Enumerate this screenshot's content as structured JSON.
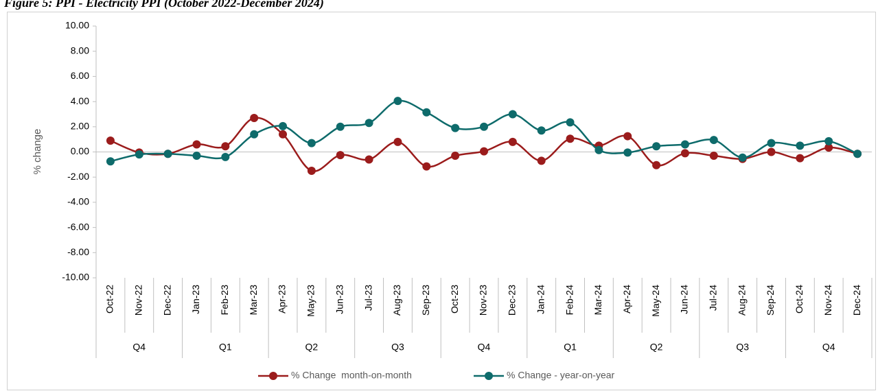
{
  "chart_data": {
    "type": "line",
    "title": "Figure 5: PPI - Electricity PPI (October 2022-December 2024)",
    "y_label": "% change",
    "categories": [
      "Oct-22",
      "Nov-22",
      "Dec-22",
      "Jan-23",
      "Feb-23",
      "Mar-23",
      "Apr-23",
      "May-23",
      "Jun-23",
      "Jul-23",
      "Aug-23",
      "Sep-23",
      "Oct-23",
      "Nov-23",
      "Dec-23",
      "Jan-24",
      "Feb-24",
      "Mar-24",
      "Apr-24",
      "May-24",
      "Jun-24",
      "Jul-24",
      "Aug-24",
      "Sep-24",
      "Oct-24",
      "Nov-24",
      "Dec-24"
    ],
    "quarters": [
      "Q4",
      "Q4",
      "Q4",
      "Q1",
      "Q1",
      "Q1",
      "Q2",
      "Q2",
      "Q2",
      "Q3",
      "Q3",
      "Q3",
      "Q4",
      "Q4",
      "Q4",
      "Q1",
      "Q1",
      "Q1",
      "Q2",
      "Q2",
      "Q2",
      "Q3",
      "Q3",
      "Q3",
      "Q4",
      "Q4",
      "Q4"
    ],
    "series": [
      {
        "name": "% Change  month-on-month",
        "color": "#9b1c1c",
        "values": [
          0.9,
          -0.05,
          -0.15,
          0.6,
          0.45,
          2.7,
          1.4,
          -1.5,
          -0.25,
          -0.6,
          0.8,
          -1.15,
          -0.3,
          0.05,
          0.8,
          -0.7,
          1.05,
          0.5,
          1.25,
          -1.05,
          -0.1,
          -0.3,
          -0.55,
          0.0,
          -0.5,
          0.35,
          -0.15
        ]
      },
      {
        "name": "% Change - year-on-year",
        "color": "#0e6b6b",
        "values": [
          -0.75,
          -0.2,
          -0.15,
          -0.3,
          -0.4,
          1.4,
          2.05,
          0.7,
          2.0,
          2.3,
          4.05,
          3.15,
          1.9,
          2.0,
          3.0,
          1.7,
          2.35,
          0.15,
          -0.05,
          0.45,
          0.6,
          0.95,
          -0.45,
          0.7,
          0.5,
          0.85,
          -0.15
        ]
      }
    ],
    "ylim": [
      -10,
      10
    ],
    "yticks": [
      {
        "value": -10,
        "label": "-10.00"
      },
      {
        "value": -8,
        "label": "-8.00"
      },
      {
        "value": -6,
        "label": "-6.00"
      },
      {
        "value": -4,
        "label": "-4.00"
      },
      {
        "value": -2,
        "label": "-2.00"
      },
      {
        "value": 0,
        "label": "0.00"
      },
      {
        "value": 2,
        "label": "2.00"
      },
      {
        "value": 4,
        "label": "4.00"
      },
      {
        "value": 6,
        "label": "6.00"
      },
      {
        "value": 8,
        "label": "8.00"
      },
      {
        "value": 10,
        "label": "10.00"
      }
    ],
    "smooth": true,
    "grid": false,
    "legend": "bottom"
  }
}
